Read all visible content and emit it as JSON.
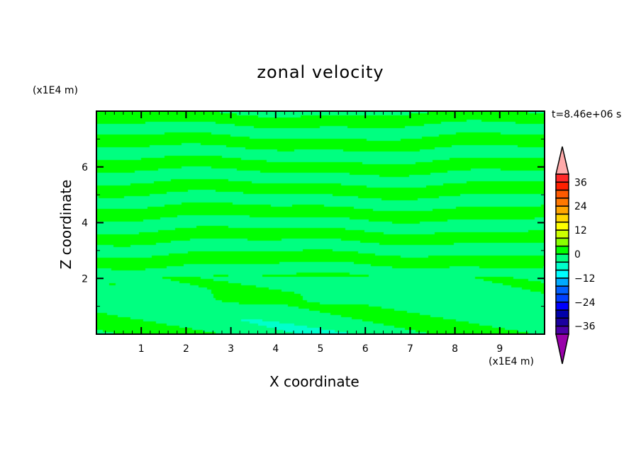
{
  "chart_data": {
    "type": "heatmap",
    "title": "zonal velocity",
    "xlabel": "X coordinate",
    "ylabel": "Z coordinate",
    "x_unit": "(x1E4 m)",
    "y_unit": "(x1E4 m)",
    "time_label": "t=8.46e+06 s",
    "xlim": [
      0,
      10
    ],
    "ylim": [
      0,
      8
    ],
    "x_ticks": [
      "1",
      "2",
      "3",
      "4",
      "5",
      "6",
      "7",
      "8",
      "9"
    ],
    "y_ticks": [
      "2",
      "4",
      "6"
    ],
    "colorbar": {
      "levels_step": 4,
      "range": [
        -36,
        36
      ],
      "tick_labels": [
        "36",
        "24",
        "12",
        "0",
        "-12",
        "-24",
        "-36"
      ],
      "colors_top_to_bottom": [
        "#ff2828",
        "#ff2000",
        "#ff5a00",
        "#ff7800",
        "#ffa500",
        "#ffd700",
        "#ffff00",
        "#ccff00",
        "#88ff00",
        "#00ff00",
        "#00ff80",
        "#00ffcc",
        "#00ffff",
        "#00aaff",
        "#0060ff",
        "#0040ff",
        "#0000ff",
        "#0000aa",
        "#1a00a0",
        "#4b00a8"
      ],
      "over_color": "#ffaaaa",
      "under_color": "#9900aa"
    },
    "dominant_values": "field mostly between -4 and 4 (alternating horizontal bands)"
  }
}
